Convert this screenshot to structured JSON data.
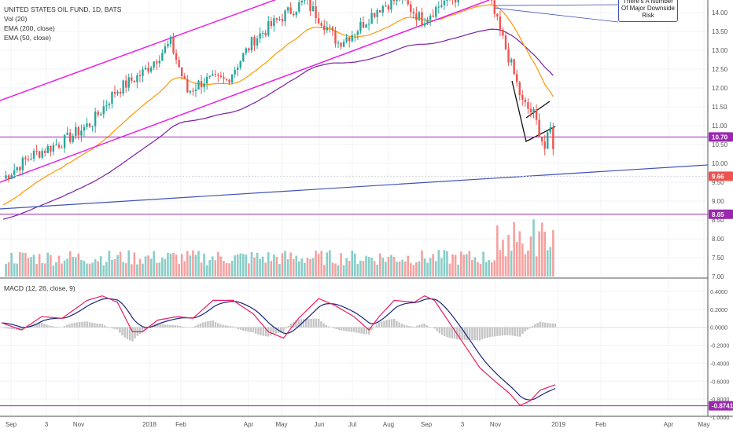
{
  "chart_data": [
    {
      "type": "candlestick",
      "title": "UNITED STATES OIL FUND, 1D, BATS",
      "indicators": [
        "Vol (20)",
        "EMA (200, close)",
        "EMA (50, close)"
      ],
      "x_tick_labels": [
        "Sep",
        "3",
        "Nov",
        "2018",
        "Feb",
        "Apr",
        "May",
        "Jun",
        "Jul",
        "Aug",
        "Sep",
        "3",
        "Nov",
        "2019",
        "Feb",
        "Apr",
        "May"
      ],
      "y_tick_labels": [
        "14.00",
        "13.50",
        "13.00",
        "12.50",
        "12.00",
        "11.50",
        "11.00",
        "10.50",
        "10.00",
        "9.50",
        "9.00",
        "8.50",
        "8.00",
        "7.50",
        "7.00"
      ],
      "ylim": [
        7.0,
        14.2
      ],
      "horizontal_levels": [
        {
          "label": "10.70",
          "value": 10.7,
          "color": "#9c27b0"
        },
        {
          "label": "8.65",
          "value": 8.65,
          "color": "#9c27b0"
        }
      ],
      "last_price": {
        "label": "9.66",
        "value": 9.66,
        "color": "#ef5350"
      },
      "annotation": "There's A Number Of Major Downside Risk",
      "series": [
        {
          "name": "EMA (50, close)",
          "color": "#ff9800"
        },
        {
          "name": "EMA (200, close)",
          "color": "#7b1fa2"
        }
      ],
      "grid": true
    },
    {
      "type": "line",
      "title": "MACD (12, 26, close, 9)",
      "y_tick_labels": [
        "0.4000",
        "0.2000",
        "0.0000",
        "-0.2000",
        "-0.4000",
        "-0.6000",
        "-0.8000",
        "-1.0000"
      ],
      "ylim": [
        -1.0,
        0.5
      ],
      "horizontal_levels": [
        {
          "label": "-0.8741",
          "value": -0.8741,
          "color": "#9c27b0"
        }
      ],
      "series": [
        {
          "name": "MACD",
          "color": "#1a237e"
        },
        {
          "name": "Signal",
          "color": "#e91e63"
        },
        {
          "name": "Histogram",
          "color": "#9e9e9e"
        }
      ],
      "grid": true
    }
  ],
  "colors": {
    "up": "#26a69a",
    "down": "#ef5350",
    "channel": "#e91ee6",
    "trend": "#3f51b5"
  }
}
